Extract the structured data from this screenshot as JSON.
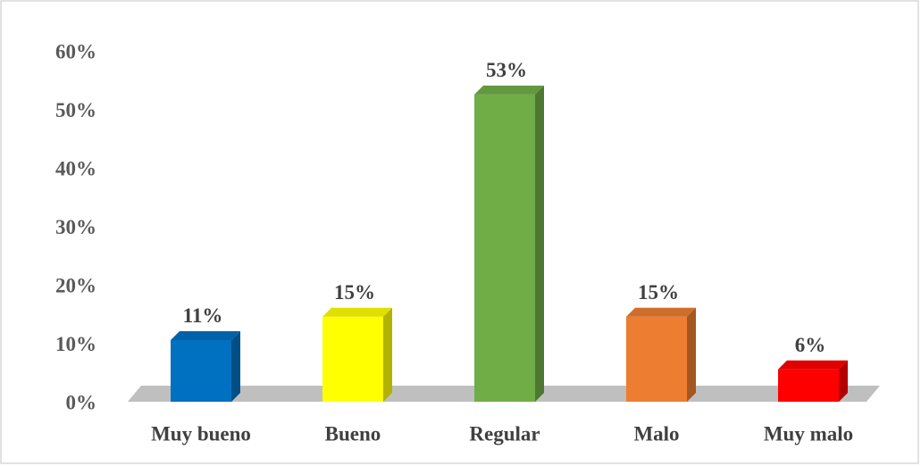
{
  "chart_data": {
    "type": "bar3d",
    "categories": [
      "Muy bueno",
      "Bueno",
      "Regular",
      "Malo",
      "Muy malo"
    ],
    "values": [
      11,
      15,
      53,
      15,
      6
    ],
    "value_labels": [
      "11%",
      "15%",
      "53%",
      "15%",
      "6%"
    ],
    "colors": [
      "#0070c0",
      "#ffff00",
      "#70ad47",
      "#ed7d31",
      "#ff0000"
    ],
    "ylim": [
      0,
      60
    ],
    "yticks": [
      {
        "value": 0,
        "label": "0%"
      },
      {
        "value": 10,
        "label": "10%"
      },
      {
        "value": 20,
        "label": "20%"
      },
      {
        "value": 30,
        "label": "30%"
      },
      {
        "value": 40,
        "label": "40%"
      },
      {
        "value": 50,
        "label": "50%"
      },
      {
        "value": 60,
        "label": "60%"
      }
    ],
    "grid": false
  }
}
